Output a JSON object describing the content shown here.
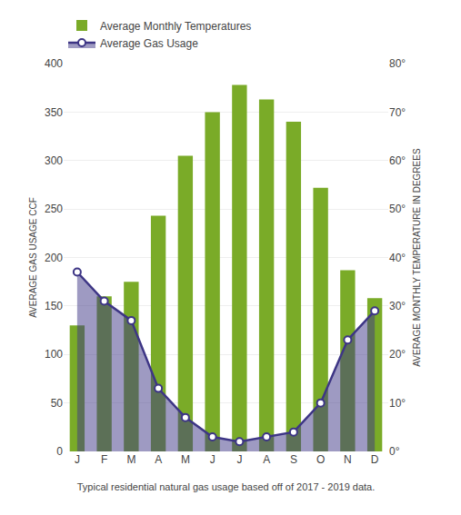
{
  "chart_data": {
    "type": "bar",
    "categories": [
      "J",
      "F",
      "M",
      "A",
      "M",
      "J",
      "J",
      "A",
      "S",
      "O",
      "N",
      "D"
    ],
    "series": [
      {
        "name": "Average Monthly Temperatures",
        "type": "bar",
        "color": "#7aab28",
        "values": [
          130,
          160,
          175,
          243,
          305,
          350,
          378,
          363,
          340,
          272,
          187,
          158
        ]
      },
      {
        "name": "Average Gas Usage",
        "type": "area",
        "axis": "y2",
        "color": "#3d3585",
        "marker": "circle",
        "values": [
          37,
          31,
          27,
          13,
          7,
          3,
          2,
          3,
          4,
          10,
          23,
          29
        ]
      }
    ],
    "xlabel": "Typical residential natural gas usage based off of 2017 - 2019 data.",
    "ylabel": "AVERAGE GAS USAGE CCF",
    "y2label": "AVERAGE MONTHLY TEMPERATURE IN DEGREES",
    "ylim": [
      0,
      400
    ],
    "yticks": [
      0,
      50,
      100,
      150,
      200,
      250,
      300,
      350,
      400
    ],
    "y2lim": [
      0,
      80
    ],
    "y2ticks": [
      {
        "value": 0,
        "label": "0°"
      },
      {
        "value": 10,
        "label": "10°"
      },
      {
        "value": 20,
        "label": "20°"
      },
      {
        "value": 30,
        "label": "30°"
      },
      {
        "value": 40,
        "label": "40°"
      },
      {
        "value": 50,
        "label": "50°"
      },
      {
        "value": 60,
        "label": "60°"
      },
      {
        "value": 70,
        "label": "70°"
      },
      {
        "value": 80,
        "label": "80°"
      }
    ],
    "grid": true,
    "legend": "upper left"
  }
}
